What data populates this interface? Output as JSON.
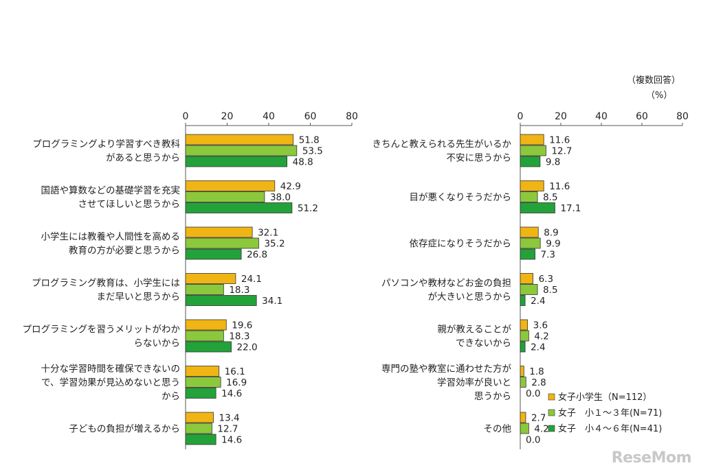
{
  "notes": {
    "multi_answer": "（複数回答）",
    "unit": "（%）"
  },
  "watermark": "ReseMom",
  "colors": {
    "s1": "#F0B514",
    "s2": "#8CC83C",
    "s3": "#23A23A"
  },
  "chart_data": [
    {
      "type": "bar",
      "orientation": "horizontal",
      "xlim": [
        0,
        80
      ],
      "ticks": [
        "0",
        "20",
        "40",
        "60",
        "80"
      ],
      "categories": [
        [
          "プログラミングより学習すべき教科",
          "があると思うから"
        ],
        [
          "国語や算数などの基礎学習を充実",
          "させてほしいと思うから"
        ],
        [
          "小学生には教養や人間性を高める",
          "教育の方が必要と思うから"
        ],
        [
          "プログラミング教育は、小学生には",
          "まだ早いと思うから"
        ],
        [
          "プログラミングを習うメリットがわか",
          "らないから"
        ],
        [
          "十分な学習時間を確保できないの",
          "で、学習効果が見込めないと思う",
          "から"
        ],
        [
          "子どもの負担が増えるから"
        ]
      ],
      "series": [
        {
          "name": "女子小学生（N=112）",
          "values": [
            51.8,
            42.9,
            32.1,
            24.1,
            19.6,
            16.1,
            13.4
          ]
        },
        {
          "name": "女子　小１～３年(N=71)",
          "values": [
            53.5,
            38.0,
            35.2,
            18.3,
            18.3,
            16.9,
            12.7
          ]
        },
        {
          "name": "女子　小４～６年(N=41)",
          "values": [
            48.8,
            51.2,
            26.8,
            34.1,
            22.0,
            14.6,
            14.6
          ]
        }
      ],
      "value_labels": [
        [
          "51.8",
          "42.9",
          "32.1",
          "24.1",
          "19.6",
          "16.1",
          "13.4"
        ],
        [
          "53.5",
          "38.0",
          "35.2",
          "18.3",
          "18.3",
          "16.9",
          "12.7"
        ],
        [
          "48.8",
          "51.2",
          "26.8",
          "34.1",
          "22.0",
          "14.6",
          "14.6"
        ]
      ]
    },
    {
      "type": "bar",
      "orientation": "horizontal",
      "xlim": [
        0,
        80
      ],
      "ticks": [
        "0",
        "20",
        "40",
        "60",
        "80"
      ],
      "legend": "bottom-right",
      "categories": [
        [
          "きちんと教えられる先生がいるか",
          "不安に思うから"
        ],
        [
          "目が悪くなりそうだから"
        ],
        [
          "依存症になりそうだから"
        ],
        [
          "パソコンや教材などお金の負担",
          "が大きいと思うから"
        ],
        [
          "親が教えることが",
          "できないから"
        ],
        [
          "専門の塾や教室に通わせた方が",
          "学習効率が良いと",
          "思うから"
        ],
        [
          "その他"
        ]
      ],
      "series": [
        {
          "name": "女子小学生（N=112）",
          "values": [
            11.6,
            11.6,
            8.9,
            6.3,
            3.6,
            1.8,
            2.7
          ]
        },
        {
          "name": "女子　小１～３年(N=71)",
          "values": [
            12.7,
            8.5,
            9.9,
            8.5,
            4.2,
            2.8,
            4.2
          ]
        },
        {
          "name": "女子　小４～６年(N=41)",
          "values": [
            9.8,
            17.1,
            7.3,
            2.4,
            2.4,
            0.0,
            0.0
          ]
        }
      ],
      "value_labels": [
        [
          "11.6",
          "11.6",
          "8.9",
          "6.3",
          "3.6",
          "1.8",
          "2.7"
        ],
        [
          "12.7",
          "8.5",
          "9.9",
          "8.5",
          "4.2",
          "2.8",
          "4.2"
        ],
        [
          "9.8",
          "17.1",
          "7.3",
          "2.4",
          "2.4",
          "0.0",
          "0.0"
        ]
      ]
    }
  ]
}
